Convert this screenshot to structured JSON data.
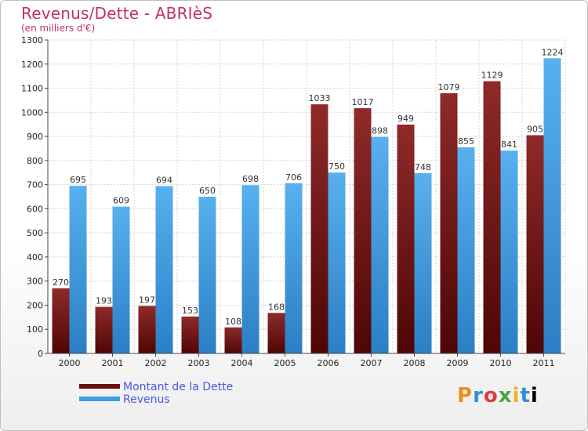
{
  "header": {
    "title": "Revenus/Dette - ABRIèS",
    "subtitle": "(en milliers d'€)"
  },
  "chart_data": {
    "type": "bar",
    "categories": [
      "2000",
      "2001",
      "2002",
      "2003",
      "2004",
      "2005",
      "2006",
      "2007",
      "2008",
      "2009",
      "2010",
      "2011"
    ],
    "series": [
      {
        "name": "Montant de la Dette",
        "color": "#7d1a1a",
        "values": [
          270,
          193,
          197,
          153,
          108,
          168,
          1033,
          1017,
          949,
          1079,
          1129,
          905
        ]
      },
      {
        "name": "Revenus",
        "color": "#3f9ee0",
        "values": [
          695,
          609,
          694,
          650,
          698,
          706,
          750,
          898,
          748,
          855,
          841,
          1224
        ]
      }
    ],
    "ylim": [
      0,
      1300
    ],
    "yticks": [
      0,
      100,
      200,
      300,
      400,
      500,
      600,
      700,
      800,
      900,
      1000,
      1100,
      1200,
      1300
    ],
    "grid": true,
    "legend_position": "bottom-left"
  },
  "legend": {
    "items": [
      {
        "label": "Montant de la Dette",
        "color": "#6b1010"
      },
      {
        "label": "Revenus",
        "color": "#3f9ee0"
      }
    ]
  },
  "logo": {
    "letters": [
      "P",
      "r",
      "o",
      "x",
      "i",
      "t",
      "i"
    ]
  }
}
